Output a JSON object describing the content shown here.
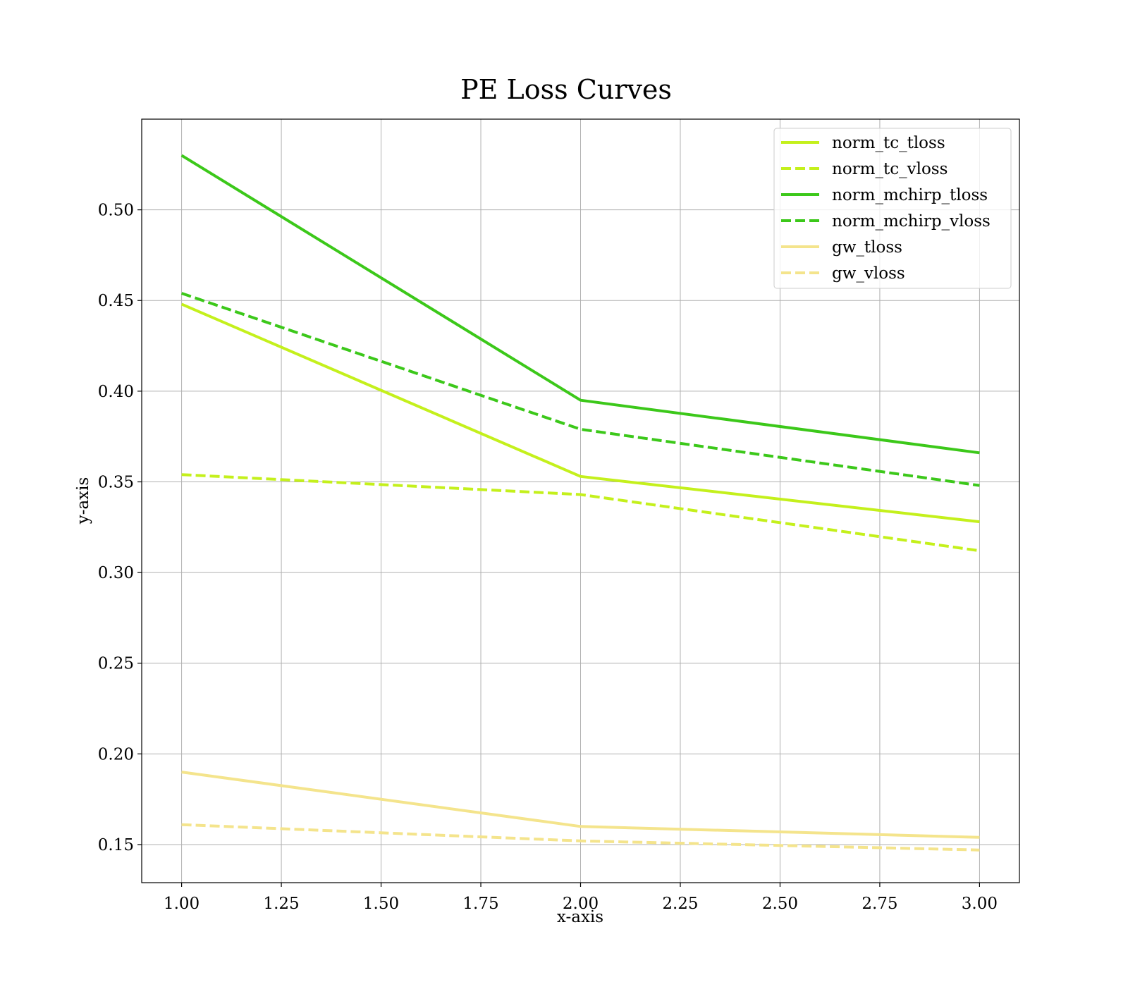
{
  "chart_data": {
    "type": "line",
    "title": "PE Loss Curves",
    "xlabel": "x-axis",
    "ylabel": "y-axis",
    "xlim": [
      0.9,
      3.1
    ],
    "ylim": [
      0.129,
      0.55
    ],
    "xticks": [
      1.0,
      1.25,
      1.5,
      1.75,
      2.0,
      2.25,
      2.5,
      2.75,
      3.0
    ],
    "xtick_labels": [
      "1.00",
      "1.25",
      "1.50",
      "1.75",
      "2.00",
      "2.25",
      "2.50",
      "2.75",
      "3.00"
    ],
    "yticks": [
      0.15,
      0.2,
      0.25,
      0.3,
      0.35,
      0.4,
      0.45,
      0.5
    ],
    "ytick_labels": [
      "0.15",
      "0.20",
      "0.25",
      "0.30",
      "0.35",
      "0.40",
      "0.45",
      "0.50"
    ],
    "grid": true,
    "legend_position": "top-right",
    "x": [
      1,
      2,
      3
    ],
    "series": [
      {
        "name": "norm_tc_tloss",
        "values": [
          0.448,
          0.353,
          0.328
        ],
        "color": "#c4f01c",
        "style": "solid"
      },
      {
        "name": "norm_tc_vloss",
        "values": [
          0.354,
          0.343,
          0.312
        ],
        "color": "#c4f01c",
        "style": "dashed"
      },
      {
        "name": "norm_mchirp_tloss",
        "values": [
          0.53,
          0.395,
          0.366
        ],
        "color": "#3cc81a",
        "style": "solid"
      },
      {
        "name": "norm_mchirp_vloss",
        "values": [
          0.454,
          0.379,
          0.348
        ],
        "color": "#3cc81a",
        "style": "dashed"
      },
      {
        "name": "gw_tloss",
        "values": [
          0.19,
          0.16,
          0.154
        ],
        "color": "#f4e48c",
        "style": "solid"
      },
      {
        "name": "gw_vloss",
        "values": [
          0.161,
          0.152,
          0.147
        ],
        "color": "#f4e48c",
        "style": "dashed"
      }
    ]
  }
}
